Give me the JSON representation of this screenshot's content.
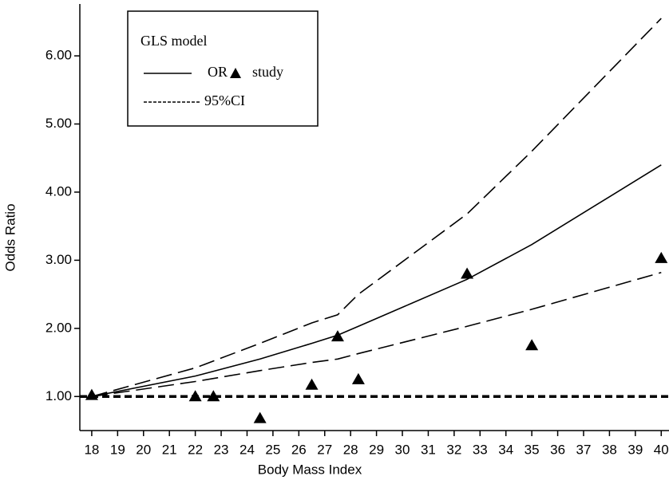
{
  "chart_data": {
    "type": "line",
    "x_label": "Body Mass Index",
    "y_label": "Odds Ratio",
    "legend_title": "GLS model",
    "xlim": [
      17.54,
      40.3
    ],
    "ylim": [
      0.5,
      6.82
    ],
    "xticks": [
      18,
      19,
      20,
      21,
      22,
      23,
      24,
      25,
      26,
      27,
      28,
      29,
      30,
      31,
      32,
      33,
      34,
      35,
      36,
      37,
      38,
      39,
      40
    ],
    "yticks": [
      {
        "value": 1,
        "label": "1.00"
      },
      {
        "value": 2,
        "label": "2.00"
      },
      {
        "value": 3,
        "label": "3.00"
      },
      {
        "value": 4,
        "label": "4.00"
      },
      {
        "value": 5,
        "label": "5.00"
      },
      {
        "value": 6,
        "label": "6.00"
      }
    ],
    "reference_line": 1,
    "series": [
      {
        "name": "OR",
        "color": "#000000",
        "style": "solid",
        "x": [
          18,
          22,
          24.5,
          26.5,
          27.5,
          28.3,
          32.5,
          35,
          40
        ],
        "values": [
          1.0,
          1.3,
          1.55,
          1.78,
          1.9,
          2.03,
          2.72,
          3.23,
          4.4
        ]
      },
      {
        "name": "study",
        "color": "#000000",
        "style": "triangle",
        "x": [
          18,
          22,
          22.7,
          24.5,
          26.5,
          27.5,
          28.3,
          32.5,
          35,
          40
        ],
        "values": [
          1.02,
          1.0,
          1.0,
          0.68,
          1.17,
          1.88,
          1.25,
          2.8,
          1.75,
          3.03
        ]
      },
      {
        "name": "95%CI",
        "color": "#000000",
        "style": "dashed",
        "x": [
          18,
          22,
          24.5,
          26.5,
          27.5,
          28.3,
          32.5,
          35,
          40
        ],
        "values": [
          1.0,
          1.22,
          1.38,
          1.5,
          1.55,
          1.63,
          2.03,
          2.28,
          2.82
        ],
        "upper": [
          1.0,
          1.42,
          1.78,
          2.08,
          2.2,
          2.5,
          3.68,
          4.6,
          6.55
        ]
      }
    ]
  }
}
